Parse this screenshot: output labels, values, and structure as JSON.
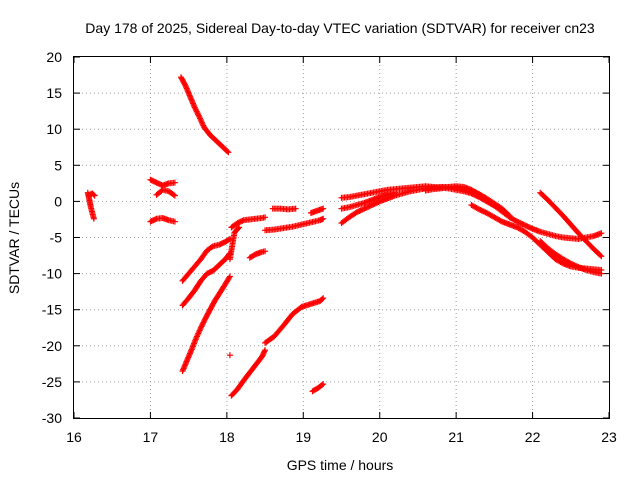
{
  "chart_data": {
    "type": "scatter",
    "title": "Day 178 of 2025, Sidereal Day-to-day VTEC variation (SDTVAR) for receiver cn23",
    "xlabel": "GPS time / hours",
    "ylabel": "SDTVAR / TECUs",
    "xlim": [
      16,
      23
    ],
    "ylim": [
      -30,
      20
    ],
    "xticks": [
      "16",
      "17",
      "18",
      "19",
      "20",
      "21",
      "22",
      "23"
    ],
    "yticks": [
      "20",
      "15",
      "10",
      "5",
      "0",
      "-5",
      "-10",
      "-15",
      "-20",
      "-25",
      "-30"
    ],
    "grid": true,
    "marker": "+",
    "color": "#ff0000",
    "series": [
      {
        "name": "s1",
        "x": [
          16.18,
          16.2,
          16.22,
          16.24,
          16.26
        ],
        "y": [
          1.2,
          0.3,
          -0.8,
          -1.6,
          -2.4
        ]
      },
      {
        "name": "s1b",
        "x": [
          16.2,
          16.24,
          16.27
        ],
        "y": [
          0.9,
          1.1,
          0.8
        ]
      },
      {
        "name": "s2",
        "x": [
          17.0,
          17.08,
          17.16,
          17.24,
          17.32
        ],
        "y": [
          3.0,
          2.6,
          2.2,
          2.5,
          2.6
        ]
      },
      {
        "name": "s3",
        "x": [
          17.0,
          17.08,
          17.16,
          17.24,
          17.32
        ],
        "y": [
          -2.8,
          -2.4,
          -2.3,
          -2.6,
          -2.8
        ]
      },
      {
        "name": "s4",
        "x": [
          17.08,
          17.16,
          17.24,
          17.32
        ],
        "y": [
          0.9,
          1.6,
          1.4,
          0.8
        ]
      },
      {
        "name": "s5",
        "x": [
          17.4,
          17.46,
          17.52,
          17.58,
          17.64,
          17.7,
          17.78,
          17.86,
          17.94,
          18.02
        ],
        "y": [
          17.2,
          16.0,
          14.5,
          13.0,
          11.7,
          10.3,
          9.2,
          8.4,
          7.6,
          6.8
        ]
      },
      {
        "name": "s6",
        "x": [
          17.42,
          17.5,
          17.58,
          17.66,
          17.74,
          17.82,
          17.9,
          17.98,
          18.04
        ],
        "y": [
          -11.0,
          -10.0,
          -9.0,
          -8.0,
          -6.8,
          -6.2,
          -6.0,
          -5.6,
          -5.2
        ]
      },
      {
        "name": "s7",
        "x": [
          17.42,
          17.5,
          17.58,
          17.66,
          17.74,
          17.82,
          17.9,
          17.98,
          18.04
        ],
        "y": [
          -14.4,
          -13.4,
          -12.3,
          -11.0,
          -10.0,
          -9.6,
          -8.8,
          -8.0,
          -7.2
        ]
      },
      {
        "name": "s8",
        "x": [
          17.42,
          17.48,
          17.54,
          17.6,
          17.66,
          17.72,
          17.78,
          17.84,
          17.9,
          17.96,
          18.04
        ],
        "y": [
          -23.5,
          -22.0,
          -20.5,
          -18.9,
          -17.5,
          -16.2,
          -15.0,
          -13.8,
          -12.8,
          -11.8,
          -10.4
        ]
      },
      {
        "name": "s9",
        "x": [
          18.04,
          18.1,
          18.16
        ],
        "y": [
          -8.0,
          -4.3,
          -3.6
        ]
      },
      {
        "name": "s10",
        "x": [
          18.04
        ],
        "y": [
          -21.3
        ]
      },
      {
        "name": "s11",
        "x": [
          18.06,
          18.14,
          18.22,
          18.3,
          18.38,
          18.46,
          18.5
        ],
        "y": [
          -3.6,
          -3.0,
          -2.6,
          -2.5,
          -2.4,
          -2.3,
          -2.2
        ]
      },
      {
        "name": "s12",
        "x": [
          18.06,
          18.14,
          18.22,
          18.3,
          18.38,
          18.46,
          18.5
        ],
        "y": [
          -26.9,
          -26.0,
          -24.8,
          -23.7,
          -22.6,
          -21.5,
          -20.6
        ]
      },
      {
        "name": "s13",
        "x": [
          18.3,
          18.38,
          18.46,
          18.5
        ],
        "y": [
          -7.8,
          -7.3,
          -7.0,
          -6.9
        ]
      },
      {
        "name": "s14",
        "x": [
          18.5,
          18.62,
          18.74,
          18.86,
          18.98,
          19.1,
          19.22,
          19.26
        ],
        "y": [
          -19.6,
          -18.7,
          -17.2,
          -15.6,
          -14.6,
          -14.2,
          -13.8,
          -13.4
        ]
      },
      {
        "name": "s15",
        "x": [
          18.5,
          18.62,
          18.74,
          18.86,
          18.98,
          19.1,
          19.22,
          19.26
        ],
        "y": [
          -4.0,
          -3.9,
          -3.7,
          -3.5,
          -3.2,
          -2.9,
          -2.6,
          -2.4
        ]
      },
      {
        "name": "s16",
        "x": [
          18.6,
          18.7,
          18.8,
          18.9
        ],
        "y": [
          -1.0,
          -1.0,
          -1.1,
          -1.0
        ]
      },
      {
        "name": "s17",
        "x": [
          19.1,
          19.18,
          19.26
        ],
        "y": [
          -1.6,
          -1.3,
          -1.0
        ]
      },
      {
        "name": "s18",
        "x": [
          19.12,
          19.2,
          19.26
        ],
        "y": [
          -26.3,
          -25.8,
          -25.3
        ]
      },
      {
        "name": "s19",
        "x": [
          19.5,
          19.6,
          19.7,
          19.8,
          19.9,
          20.0,
          20.1,
          20.2,
          20.3,
          20.4,
          20.5,
          20.6,
          20.7,
          20.8,
          20.9,
          21.0,
          21.1,
          21.2,
          21.3,
          21.4,
          21.5
        ],
        "y": [
          0.5,
          0.6,
          0.8,
          1.0,
          1.2,
          1.4,
          1.6,
          1.7,
          1.8,
          1.9,
          2.0,
          2.1,
          2.0,
          1.9,
          1.8,
          1.6,
          1.4,
          1.1,
          0.6,
          0.0,
          -0.6
        ]
      },
      {
        "name": "s20",
        "x": [
          19.5,
          19.6,
          19.7,
          19.8,
          19.9,
          20.0,
          20.1,
          20.2,
          20.3,
          20.4,
          20.5,
          20.6,
          20.7,
          20.8,
          20.9,
          21.0,
          21.1,
          21.2,
          21.3,
          21.4,
          21.5,
          21.6,
          21.7
        ],
        "y": [
          -3.0,
          -2.2,
          -1.5,
          -1.0,
          -0.5,
          0.0,
          0.4,
          0.8,
          1.1,
          1.4,
          1.6,
          1.8,
          1.9,
          2.0,
          2.0,
          1.9,
          1.7,
          1.4,
          1.0,
          0.4,
          -0.3,
          -1.0,
          -2.0
        ]
      },
      {
        "name": "s21",
        "x": [
          19.5,
          19.6,
          19.7,
          19.8,
          19.9,
          20.0,
          20.1,
          20.2
        ],
        "y": [
          -1.0,
          -0.8,
          -0.5,
          -0.2,
          0.2,
          0.6,
          1.0,
          1.2
        ]
      },
      {
        "name": "s22",
        "x": [
          20.6,
          20.7,
          20.8,
          20.9,
          21.0,
          21.1,
          21.2,
          21.3,
          21.4,
          21.5,
          21.6,
          21.7,
          21.8,
          21.9,
          22.0,
          22.1,
          22.2,
          22.3,
          22.4,
          22.5,
          22.6,
          22.7,
          22.8,
          22.9
        ],
        "y": [
          1.5,
          1.7,
          1.8,
          2.0,
          2.1,
          2.0,
          1.6,
          1.0,
          0.2,
          -0.6,
          -1.4,
          -2.2,
          -2.8,
          -3.3,
          -3.8,
          -4.2,
          -4.5,
          -4.8,
          -5.0,
          -5.1,
          -5.2,
          -5.0,
          -4.8,
          -4.4
        ]
      },
      {
        "name": "s23",
        "x": [
          21.2,
          21.3,
          21.4,
          21.5,
          21.6,
          21.7,
          21.8,
          21.9,
          22.0,
          22.1,
          22.2,
          22.3,
          22.4,
          22.5,
          22.6,
          22.7,
          22.8,
          22.9
        ],
        "y": [
          -0.5,
          -1.1,
          -1.6,
          -2.2,
          -2.8,
          -3.2,
          -3.6,
          -4.2,
          -5.0,
          -6.0,
          -7.0,
          -8.0,
          -8.6,
          -9.0,
          -9.2,
          -9.3,
          -9.4,
          -9.5
        ]
      },
      {
        "name": "s24",
        "x": [
          22.1,
          22.2,
          22.3,
          22.4,
          22.5,
          22.6,
          22.7,
          22.8,
          22.9
        ],
        "y": [
          -5.5,
          -6.5,
          -7.3,
          -8.0,
          -8.6,
          -9.1,
          -9.5,
          -9.8,
          -10.0
        ]
      },
      {
        "name": "s25",
        "x": [
          22.1,
          22.2,
          22.3,
          22.4,
          22.5,
          22.6,
          22.7,
          22.8,
          22.9
        ],
        "y": [
          1.2,
          0.2,
          -0.9,
          -2.0,
          -3.2,
          -4.4,
          -5.5,
          -6.6,
          -7.6
        ]
      }
    ]
  }
}
